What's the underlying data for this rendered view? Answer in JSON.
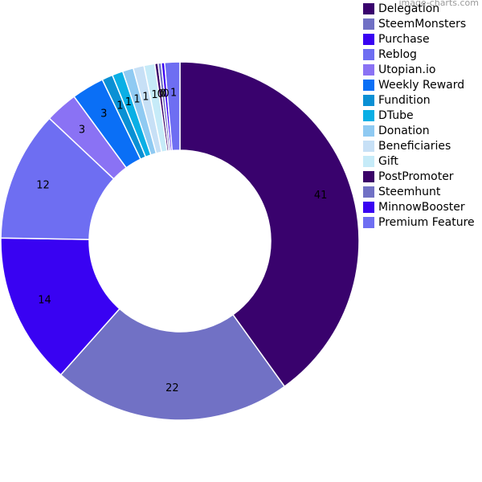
{
  "watermark": "image-charts.com",
  "chart_data": {
    "type": "pie",
    "donut": true,
    "start_angle_deg": 0,
    "direction": "clockwise",
    "legend_position": "right",
    "categories": [
      "Delegation",
      "SteemMonsters",
      "Purchase",
      "Reblog",
      "Utopian.io",
      "Weekly Reward",
      "Fundition",
      "DTube",
      "Donation",
      "Beneficiaries",
      "Gift",
      "PostPromoter",
      "Steemhunt",
      "MinnowBooster",
      "Premium Feature"
    ],
    "values": [
      41,
      22,
      14,
      12,
      3,
      3,
      1,
      1,
      1,
      1,
      1,
      0.3,
      0.3,
      0.3,
      1.4
    ],
    "labels": [
      "41",
      "22",
      "14",
      "12",
      "3",
      "3",
      "1",
      "1",
      "1",
      "1",
      "1",
      "0",
      "0",
      "0",
      "1"
    ],
    "colors": [
      "#39026d",
      "#7171c5",
      "#3902f2",
      "#6e6ef2",
      "#8a72f4",
      "#0a6ff6",
      "#0a90d4",
      "#0aafe5",
      "#8fcaf2",
      "#c7e0f6",
      "#c6ebf8",
      "#3a0268",
      "#7171c5",
      "#3902f2",
      "#6e6ef2"
    ]
  }
}
